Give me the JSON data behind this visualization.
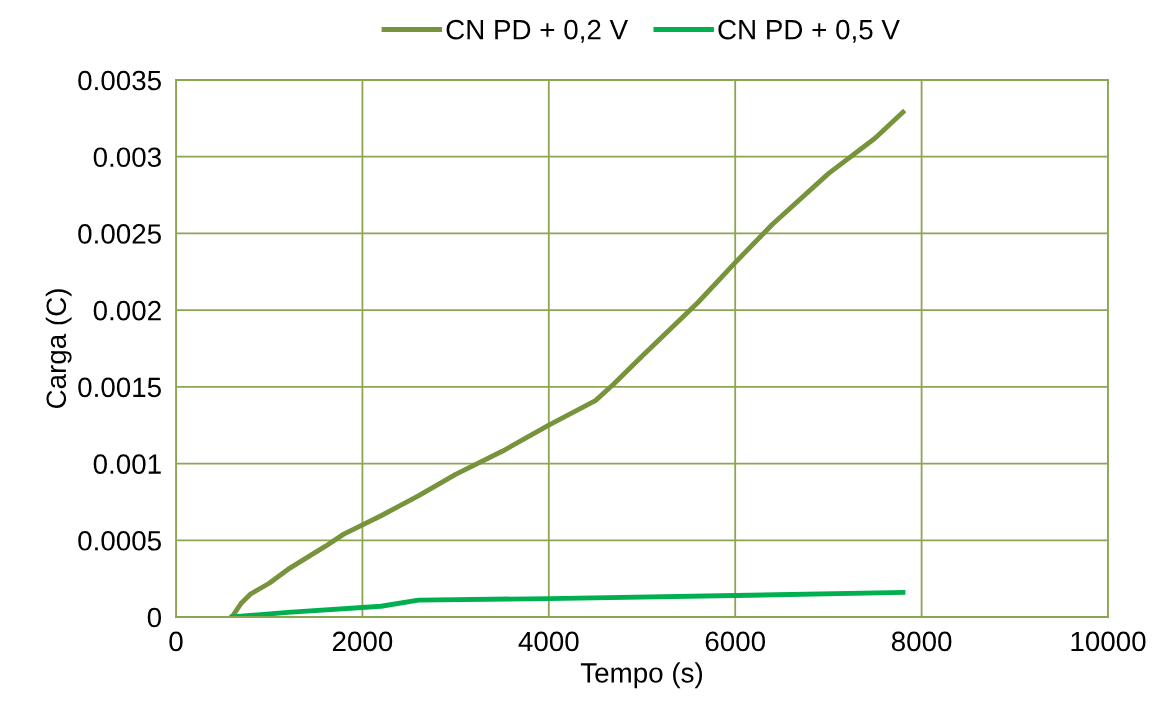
{
  "chart_data": {
    "type": "line",
    "xlabel": "Tempo (s)",
    "ylabel": "Carga (C)",
    "xlim": [
      0,
      10000
    ],
    "xticks": [
      0,
      2000,
      4000,
      6000,
      8000,
      10000
    ],
    "ylim": [
      0,
      0.0035
    ],
    "yticks": [
      0,
      0.0005,
      0.001,
      0.0015,
      0.002,
      0.0025,
      0.003,
      0.0035
    ],
    "grid": true,
    "legend": "top",
    "marker": "none",
    "line_style": "solid",
    "series": [
      {
        "name": "CN PD + 0,2 V",
        "color": "#77933c",
        "x": [
          600,
          700,
          800,
          1000,
          1200,
          1600,
          1800,
          2200,
          2600,
          3000,
          3500,
          4000,
          4500,
          4700,
          5000,
          5600,
          6000,
          6400,
          7000,
          7500,
          7800
        ],
        "values": [
          0,
          9e-05,
          0.00015,
          0.00022,
          0.00031,
          0.00046,
          0.00054,
          0.00066,
          0.00079,
          0.00093,
          0.00108,
          0.00125,
          0.00141,
          0.00152,
          0.0017,
          0.00205,
          0.00231,
          0.00256,
          0.00289,
          0.00312,
          0.00329
        ]
      },
      {
        "name": "CN PD + 0,5 V",
        "color": "#00b050",
        "x": [
          600,
          1200,
          2200,
          2600,
          4000,
          6000,
          7800
        ],
        "values": [
          0,
          3e-05,
          7e-05,
          0.00011,
          0.00012,
          0.00014,
          0.00016
        ]
      }
    ]
  }
}
